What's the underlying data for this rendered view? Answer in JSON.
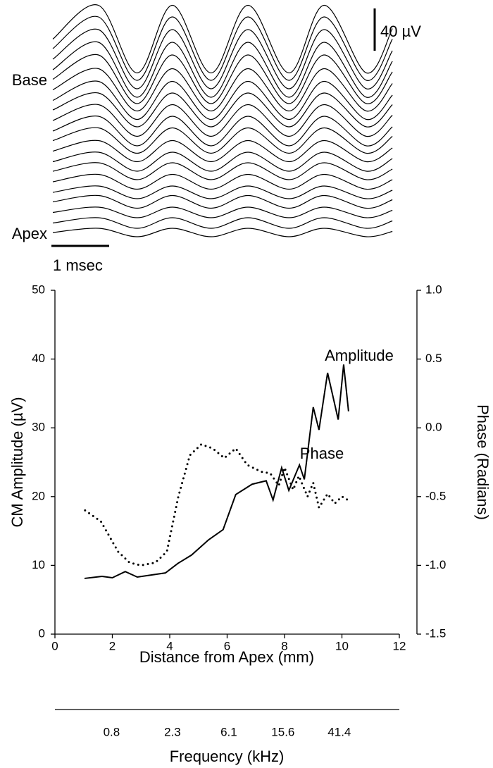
{
  "chart_data": [
    {
      "type": "traces",
      "labels": {
        "top": "Base",
        "bottom": "Apex"
      },
      "scale_bars": {
        "y": {
          "value": 40,
          "label": "40 µV"
        },
        "x": {
          "value": 1,
          "label": "1 msec"
        }
      },
      "color": "#000000",
      "x": [
        0,
        0.79,
        1.46,
        2.07,
        2.74,
        3.38,
        4.09,
        4.7,
        5.43,
        5.88
      ],
      "series": [
        {
          "values": [
            193,
            225,
            161,
            225,
            161,
            225,
            161,
            225,
            161,
            203
          ]
        },
        {
          "values": [
            184,
            214,
            154,
            214,
            154,
            214,
            154,
            214,
            154,
            193
          ]
        },
        {
          "values": [
            174,
            202,
            146,
            202,
            146,
            202,
            146,
            202,
            146,
            182
          ]
        },
        {
          "values": [
            164,
            190,
            138,
            190,
            138,
            190,
            138,
            190,
            138,
            172
          ]
        },
        {
          "values": [
            155,
            178,
            132,
            178,
            132,
            178,
            132,
            178,
            132,
            162
          ]
        },
        {
          "values": [
            145,
            165,
            125,
            165,
            125,
            165,
            125,
            165,
            125,
            151
          ]
        },
        {
          "values": [
            135,
            153,
            117,
            153,
            117,
            153,
            117,
            153,
            117,
            140
          ]
        },
        {
          "values": [
            126,
            142,
            110,
            142,
            110,
            142,
            110,
            142,
            110,
            131
          ]
        },
        {
          "values": [
            116,
            131,
            101,
            131,
            101,
            131,
            101,
            131,
            101,
            121
          ]
        },
        {
          "values": [
            106,
            120,
            92,
            120,
            92,
            120,
            92,
            120,
            92,
            110
          ]
        },
        {
          "values": [
            97,
            109,
            85,
            109,
            85,
            109,
            85,
            109,
            85,
            101
          ]
        },
        {
          "values": [
            87,
            97,
            77,
            97,
            77,
            97,
            77,
            97,
            77,
            90
          ]
        },
        {
          "values": [
            77,
            86,
            68,
            86,
            68,
            86,
            68,
            86,
            68,
            80
          ]
        },
        {
          "values": [
            68,
            76,
            60,
            76,
            60,
            76,
            60,
            76,
            60,
            70
          ]
        },
        {
          "values": [
            58,
            65,
            51,
            65,
            51,
            65,
            51,
            65,
            51,
            60
          ]
        },
        {
          "values": [
            48,
            54,
            42,
            54,
            42,
            54,
            42,
            54,
            42,
            50
          ]
        },
        {
          "values": [
            39,
            45,
            33,
            45,
            33,
            45,
            33,
            45,
            33,
            41
          ]
        },
        {
          "values": [
            29,
            34,
            24,
            34,
            24,
            34,
            24,
            34,
            24,
            31
          ]
        },
        {
          "values": [
            19,
            24,
            14,
            24,
            14,
            24,
            14,
            24,
            14,
            21
          ]
        },
        {
          "values": [
            10,
            14,
            6,
            14,
            6,
            14,
            6,
            14,
            6,
            11
          ]
        }
      ]
    },
    {
      "type": "line",
      "x_label": "Distance from Apex (mm)",
      "y_label": "CM Amplitude (µV)",
      "y2_label": "Phase (Radians)",
      "xlim": [
        0,
        12
      ],
      "xticks": [
        0,
        2,
        4,
        6,
        8,
        10,
        12
      ],
      "ylim": [
        0,
        50
      ],
      "yticks": [
        0,
        10,
        20,
        30,
        40,
        50
      ],
      "y2lim": [
        -1.5,
        1.0
      ],
      "y2ticks": [
        -1.5,
        {
          "value": -1.0,
          "label": "-1.0"
        },
        -0.5,
        {
          "value": 0,
          "label": "0.0"
        },
        0.5,
        {
          "value": 1.0,
          "label": "1.0"
        }
      ],
      "series": [
        {
          "name": "Amplitude",
          "color": "#000000",
          "style": "solid",
          "x": [
            1.03,
            1.64,
            2.0,
            2.45,
            2.87,
            3.85,
            4.29,
            4.76,
            5.35,
            5.86,
            6.3,
            6.87,
            7.36,
            7.6,
            7.9,
            8.15,
            8.52,
            8.69,
            9.0,
            9.2,
            9.5,
            9.87,
            10.06,
            10.23
          ],
          "values": [
            8.1,
            8.4,
            8.2,
            9.1,
            8.3,
            8.9,
            10.3,
            11.5,
            13.7,
            15.2,
            20.3,
            21.8,
            22.3,
            19.5,
            24.2,
            20.9,
            24.6,
            22.5,
            33.0,
            29.7,
            38.0,
            31.2,
            39.2,
            32.4
          ]
        },
        {
          "name": "Phase",
          "color": "#000000",
          "style": "dotted",
          "axis": "y2",
          "x": [
            1.05,
            1.6,
            2.2,
            2.6,
            3.0,
            3.5,
            3.9,
            4.3,
            4.7,
            5.1,
            5.5,
            5.9,
            6.3,
            6.7,
            7.2,
            7.5,
            7.8,
            8.0,
            8.3,
            8.5,
            8.8,
            9.0,
            9.2,
            9.5,
            9.75,
            10.0,
            10.25
          ],
          "values": [
            -0.6,
            -0.68,
            -0.9,
            -0.98,
            -1.0,
            -0.98,
            -0.9,
            -0.5,
            -0.2,
            -0.12,
            -0.15,
            -0.22,
            -0.15,
            -0.27,
            -0.32,
            -0.33,
            -0.42,
            -0.29,
            -0.45,
            -0.35,
            -0.5,
            -0.4,
            -0.58,
            -0.48,
            -0.55,
            -0.5,
            -0.53
          ]
        }
      ],
      "frequency_axis": {
        "label": "Frequency (kHz)",
        "ticks": [
          0.8,
          2.3,
          6.1,
          15.6,
          41.4
        ],
        "lim": [
          0.3,
          117
        ],
        "log": true
      }
    }
  ]
}
